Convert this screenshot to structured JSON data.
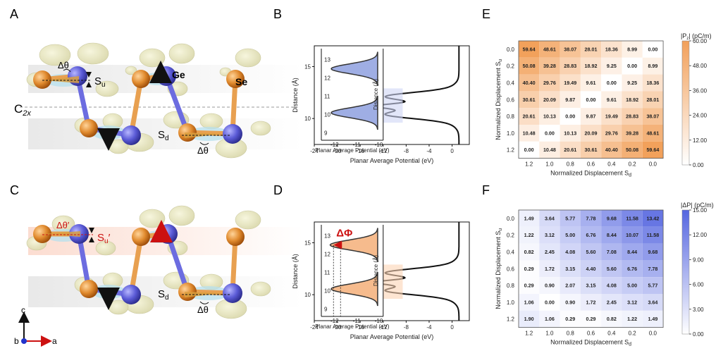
{
  "panels": {
    "A": "A",
    "B": "B",
    "C": "C",
    "D": "D",
    "E": "E",
    "F": "F"
  },
  "structure": {
    "delta_theta": "Δθ",
    "delta_theta_prime": "Δθ′",
    "s_u": "S",
    "s_u_sub": "u",
    "s_u_prime_sub": "u",
    "s_u_prime_mark": "′",
    "s_d": "S",
    "s_d_sub": "d",
    "ge": "Ge",
    "se": "Se",
    "c2x": "C",
    "c2x_sub": "2x",
    "axis_c": "c",
    "axis_b": "b",
    "axis_a": "a",
    "colors": {
      "ge_atom": "#5a5ad6",
      "se_atom": "#e08a2e",
      "isosurface": "#e9e8c0",
      "band_gray": "#e8e8e8",
      "band_pink": "#fbe4dc",
      "highlight_red": "#cc1111"
    }
  },
  "potential_B": {
    "xlabel": "Planar Average Potential (eV)",
    "ylabel": "Distance (Å)",
    "xticks": [
      "-24",
      "-20",
      "-16",
      "-12",
      "-8",
      "-4",
      "0"
    ],
    "yticks": [
      "10",
      "15"
    ],
    "inset_xlabel": "Planar Average Potential (eV)",
    "inset_ylabel": "Distance (Å)",
    "inset_xticks": [
      "-12",
      "-11",
      "-10"
    ],
    "inset_yticks": [
      "9",
      "10",
      "11",
      "12",
      "13"
    ],
    "fill_color": "#8fa0e0"
  },
  "potential_D": {
    "xlabel": "Planar Average Potential (eV)",
    "ylabel": "Distance (Å)",
    "xticks": [
      "-24",
      "-20",
      "-16",
      "-12",
      "-8",
      "-4",
      "0"
    ],
    "yticks": [
      "10",
      "15"
    ],
    "inset_xlabel": "Planar Average Potential (eV)",
    "inset_ylabel": "Distance (Å)",
    "inset_xticks": [
      "-12",
      "-11",
      "-10"
    ],
    "inset_yticks": [
      "9",
      "10",
      "11",
      "12",
      "13"
    ],
    "delta_phi": "ΔΦ",
    "fill_color": "#f5b07a"
  },
  "chart_data": [
    {
      "type": "heatmap",
      "panel": "E",
      "xlabel": "Normalized Displacement S",
      "xlabel_sub": "d",
      "ylabel": "Normalized Displacement S",
      "ylabel_sub": "u",
      "x": [
        "1.2",
        "1.0",
        "0.8",
        "0.6",
        "0.4",
        "0.2",
        "0.0"
      ],
      "y": [
        "0.0",
        "0.2",
        "0.4",
        "0.6",
        "0.8",
        "1.0",
        "1.2"
      ],
      "values": [
        [
          "59.64",
          "48.61",
          "38.07",
          "28.01",
          "18.36",
          "8.99",
          "0.00"
        ],
        [
          "50.08",
          "39.28",
          "28.83",
          "18.92",
          "9.25",
          "0.00",
          "8.99"
        ],
        [
          "40.40",
          "29.76",
          "19.49",
          "9.61",
          "0.00",
          "9.25",
          "18.36"
        ],
        [
          "30.61",
          "20.09",
          "9.87",
          "0.00",
          "9.61",
          "18.92",
          "28.01"
        ],
        [
          "20.61",
          "10.13",
          "0.00",
          "9.87",
          "19.49",
          "28.83",
          "38.07"
        ],
        [
          "10.48",
          "0.00",
          "10.13",
          "20.09",
          "29.76",
          "39.28",
          "48.61"
        ],
        [
          "0.00",
          "10.48",
          "20.61",
          "30.61",
          "40.40",
          "50.08",
          "59.64"
        ]
      ],
      "colorbar_label": "|P",
      "colorbar_label_sub": "z",
      "colorbar_label_end": "| (pC/m)",
      "colorbar_ticks": [
        "60.00",
        "48.00",
        "36.00",
        "24.00",
        "12.00",
        "0.00"
      ],
      "vmax": 60,
      "color_low": "#ffffff",
      "color_high": "#f2a05a"
    },
    {
      "type": "heatmap",
      "panel": "F",
      "xlabel": "Normalized Displacement S",
      "xlabel_sub": "d",
      "ylabel": "Normalized Displacement S",
      "ylabel_sub": "u",
      "x": [
        "1.2",
        "1.0",
        "0.8",
        "0.6",
        "0.4",
        "0.2",
        "0.0"
      ],
      "y": [
        "0.0",
        "0.2",
        "0.4",
        "0.6",
        "0.8",
        "1.0",
        "1.2"
      ],
      "values": [
        [
          "1.49",
          "3.64",
          "5.77",
          "7.78",
          "9.68",
          "11.58",
          "13.42"
        ],
        [
          "1.22",
          "3.12",
          "5.00",
          "6.76",
          "8.44",
          "10.07",
          "11.58"
        ],
        [
          "0.82",
          "2.45",
          "4.08",
          "5.60",
          "7.08",
          "8.44",
          "9.68"
        ],
        [
          "0.29",
          "1.72",
          "3.15",
          "4.40",
          "5.60",
          "6.76",
          "7.78"
        ],
        [
          "0.29",
          "0.90",
          "2.07",
          "3.15",
          "4.08",
          "5.00",
          "5.77"
        ],
        [
          "1.06",
          "0.00",
          "0.90",
          "1.72",
          "2.45",
          "3.12",
          "3.64"
        ],
        [
          "1.90",
          "1.06",
          "0.29",
          "0.29",
          "0.82",
          "1.22",
          "1.49"
        ]
      ],
      "colorbar_label": "|ΔP| (pC/m)",
      "colorbar_ticks": [
        "15.00",
        "12.00",
        "9.00",
        "6.00",
        "3.00",
        "0.00"
      ],
      "vmax": 15,
      "color_low": "#ffffff",
      "color_high": "#5566e0"
    }
  ]
}
